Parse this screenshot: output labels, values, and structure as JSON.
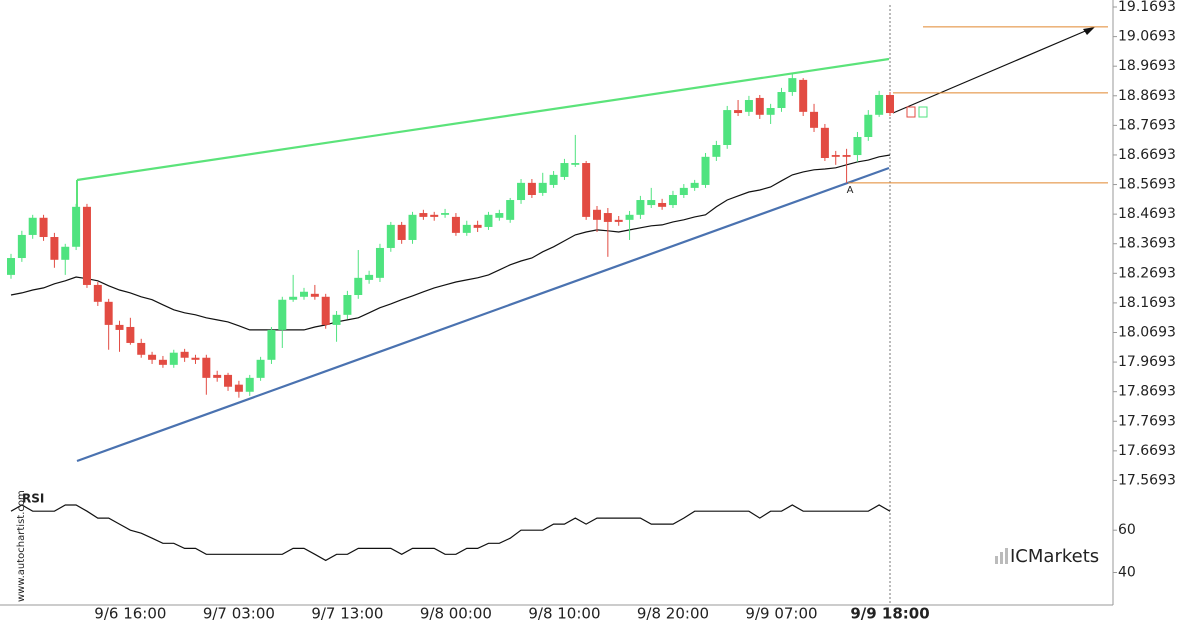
{
  "chart_data": {
    "type": "candlestick",
    "categories": [
      null,
      null,
      null,
      null,
      null,
      null,
      null,
      null,
      null,
      null,
      null,
      "9/6 16:00",
      null,
      null,
      null,
      null,
      null,
      null,
      null,
      null,
      null,
      "9/7 03:00",
      null,
      null,
      null,
      null,
      null,
      null,
      null,
      null,
      null,
      "9/7 13:00",
      null,
      null,
      null,
      null,
      null,
      null,
      null,
      null,
      null,
      "9/8 00:00",
      null,
      null,
      null,
      null,
      null,
      null,
      null,
      null,
      null,
      "9/8 10:00",
      null,
      null,
      null,
      null,
      null,
      null,
      null,
      null,
      null,
      "9/8 20:00",
      null,
      null,
      null,
      null,
      null,
      null,
      null,
      null,
      null,
      "9/9 07:00",
      null,
      null,
      null,
      null,
      null,
      null,
      null,
      null,
      null,
      "9/9 18:00"
    ],
    "open": [
      18.264,
      18.321,
      18.399,
      18.457,
      18.392,
      18.315,
      18.359,
      18.494,
      18.23,
      18.173,
      18.095,
      18.088,
      18.034,
      17.994,
      17.977,
      17.96,
      18.004,
      17.984,
      17.984,
      17.926,
      17.926,
      17.893,
      17.869,
      17.916,
      17.977,
      18.078,
      18.18,
      18.19,
      18.2,
      18.19,
      18.095,
      18.129,
      18.196,
      18.247,
      18.254,
      18.355,
      18.433,
      18.382,
      18.473,
      18.467,
      18.467,
      18.46,
      18.406,
      18.433,
      18.426,
      18.457,
      18.45,
      18.517,
      18.575,
      18.541,
      18.568,
      18.595,
      18.636,
      18.642,
      18.484,
      18.473,
      18.45,
      18.45,
      18.467,
      18.5,
      18.507,
      18.5,
      18.534,
      18.558,
      18.568,
      18.663,
      18.703,
      18.821,
      18.815,
      18.862,
      18.805,
      18.828,
      18.882,
      18.923,
      18.815,
      18.761,
      18.669,
      18.669,
      18.669,
      18.73,
      18.805,
      18.872
    ],
    "high": [
      18.335,
      18.413,
      18.467,
      18.467,
      18.406,
      18.369,
      18.504,
      18.504,
      18.24,
      18.183,
      18.109,
      18.119,
      18.048,
      18.004,
      17.99,
      18.011,
      18.014,
      17.994,
      17.994,
      17.94,
      17.933,
      17.906,
      17.926,
      17.987,
      18.088,
      18.19,
      18.264,
      18.22,
      18.23,
      18.2,
      18.142,
      18.21,
      18.348,
      18.278,
      18.369,
      18.443,
      18.443,
      18.477,
      18.484,
      18.477,
      18.487,
      18.473,
      18.447,
      18.447,
      18.477,
      18.484,
      18.524,
      18.588,
      18.588,
      18.609,
      18.615,
      18.656,
      18.737,
      18.649,
      18.497,
      18.49,
      18.463,
      18.48,
      18.531,
      18.558,
      18.521,
      18.548,
      18.571,
      18.585,
      18.676,
      18.717,
      18.835,
      18.855,
      18.869,
      18.872,
      18.842,
      18.896,
      18.946,
      18.929,
      18.842,
      18.774,
      18.683,
      18.69,
      18.747,
      18.821,
      18.886,
      18.882
    ],
    "low": [
      18.251,
      18.308,
      18.386,
      18.379,
      18.288,
      18.264,
      18.348,
      18.22,
      18.159,
      18.011,
      18.004,
      18.028,
      17.984,
      17.963,
      17.95,
      17.95,
      17.97,
      17.963,
      17.859,
      17.903,
      17.872,
      17.849,
      17.855,
      17.906,
      17.963,
      18.017,
      18.173,
      18.18,
      18.18,
      18.082,
      18.038,
      18.115,
      18.183,
      18.234,
      18.24,
      18.342,
      18.369,
      18.369,
      18.45,
      18.447,
      18.457,
      18.396,
      18.396,
      18.409,
      18.416,
      18.447,
      18.44,
      18.504,
      18.524,
      18.531,
      18.558,
      18.585,
      18.629,
      18.45,
      18.409,
      18.325,
      18.43,
      18.382,
      18.453,
      18.49,
      18.484,
      18.49,
      18.524,
      18.548,
      18.558,
      18.649,
      18.69,
      18.801,
      18.801,
      18.791,
      18.774,
      18.815,
      18.869,
      18.801,
      18.747,
      18.649,
      18.636,
      18.575,
      18.646,
      18.717,
      18.798,
      18.801
    ],
    "close": [
      18.321,
      18.399,
      18.457,
      18.392,
      18.315,
      18.359,
      18.494,
      18.23,
      18.173,
      18.095,
      18.078,
      18.034,
      17.994,
      17.977,
      17.96,
      18.001,
      17.984,
      17.977,
      17.916,
      17.916,
      17.886,
      17.869,
      17.916,
      17.977,
      18.078,
      18.18,
      18.19,
      18.207,
      18.19,
      18.095,
      18.129,
      18.196,
      18.254,
      18.264,
      18.355,
      18.433,
      18.382,
      18.467,
      18.46,
      18.46,
      18.473,
      18.406,
      18.433,
      18.423,
      18.467,
      18.473,
      18.517,
      18.575,
      18.534,
      18.575,
      18.602,
      18.642,
      18.642,
      18.46,
      18.45,
      18.443,
      18.443,
      18.467,
      18.517,
      18.517,
      18.494,
      18.534,
      18.558,
      18.575,
      18.663,
      18.703,
      18.821,
      18.811,
      18.855,
      18.805,
      18.828,
      18.882,
      18.929,
      18.815,
      18.761,
      18.659,
      18.663,
      18.663,
      18.73,
      18.805,
      18.872,
      18.811
    ],
    "up_color": "#4fe37f",
    "down_color": "#e24b42",
    "ylim": [
      17.537,
      19.193
    ],
    "yticks": [
      19.1693,
      19.0693,
      18.9693,
      18.8693,
      18.7693,
      18.6693,
      18.5693,
      18.4693,
      18.3693,
      18.2693,
      18.1693,
      18.0693,
      17.9693,
      17.8693,
      17.7693,
      17.6693,
      17.5693
    ],
    "moving_average": {
      "color": "#111111",
      "values": [
        18.196,
        18.203,
        18.213,
        18.22,
        18.234,
        18.244,
        18.257,
        18.251,
        18.244,
        18.227,
        18.213,
        18.203,
        18.19,
        18.18,
        18.163,
        18.146,
        18.136,
        18.129,
        18.119,
        18.112,
        18.105,
        18.092,
        18.078,
        18.078,
        18.078,
        18.078,
        18.078,
        18.078,
        18.088,
        18.095,
        18.105,
        18.112,
        18.119,
        18.136,
        18.153,
        18.166,
        18.18,
        18.193,
        18.207,
        18.22,
        18.23,
        18.24,
        18.247,
        18.254,
        18.264,
        18.281,
        18.298,
        18.311,
        18.321,
        18.342,
        18.359,
        18.379,
        18.399,
        18.409,
        18.416,
        18.413,
        18.409,
        18.416,
        18.423,
        18.43,
        18.433,
        18.443,
        18.45,
        18.46,
        18.467,
        18.494,
        18.517,
        18.531,
        18.544,
        18.551,
        18.561,
        18.582,
        18.602,
        18.612,
        18.619,
        18.622,
        18.626,
        18.636,
        18.646,
        18.652,
        18.663,
        18.669
      ]
    },
    "levels": {
      "color": "#e0872f",
      "values": [
        19.102,
        18.879,
        18.575
      ]
    },
    "rsi": {
      "label": "RSI",
      "color": "#111111",
      "ylim": [
        27,
        79
      ],
      "yticks": [
        40,
        60
      ],
      "values": [
        69.0,
        71.9,
        69.0,
        69.0,
        69.0,
        71.9,
        71.9,
        69.0,
        65.7,
        65.7,
        62.9,
        60.0,
        58.6,
        56.2,
        53.8,
        53.8,
        51.4,
        51.4,
        48.6,
        48.6,
        48.6,
        48.6,
        48.6,
        48.6,
        48.6,
        48.6,
        51.4,
        51.4,
        48.6,
        45.7,
        48.6,
        48.6,
        51.4,
        51.4,
        51.4,
        51.4,
        48.6,
        51.4,
        51.4,
        51.4,
        48.6,
        48.6,
        51.4,
        51.4,
        53.8,
        53.8,
        56.2,
        60.0,
        60.0,
        60.0,
        62.9,
        62.9,
        65.7,
        62.9,
        65.7,
        65.7,
        65.7,
        65.7,
        65.7,
        62.9,
        62.9,
        62.9,
        65.7,
        69.0,
        69.0,
        69.0,
        69.0,
        69.0,
        69.0,
        65.7,
        69.0,
        69.0,
        71.9,
        69.0,
        69.0,
        69.0,
        69.0,
        69.0,
        69.0,
        69.0,
        71.9,
        69.0
      ]
    },
    "point_label": "A",
    "watermark": "www.autochartist.com",
    "brand": "ICMarkets"
  }
}
